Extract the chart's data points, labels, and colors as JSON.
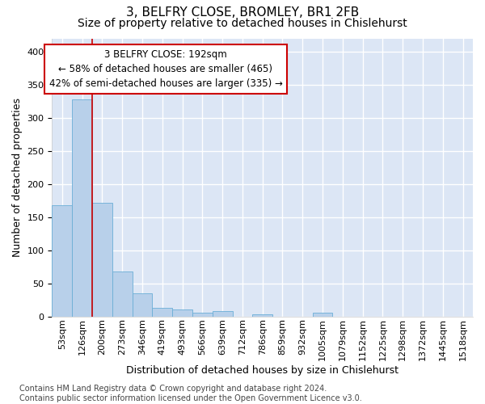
{
  "title1": "3, BELFRY CLOSE, BROMLEY, BR1 2FB",
  "title2": "Size of property relative to detached houses in Chislehurst",
  "xlabel": "Distribution of detached houses by size in Chislehurst",
  "ylabel": "Number of detached properties",
  "footnote": "Contains HM Land Registry data © Crown copyright and database right 2024.\nContains public sector information licensed under the Open Government Licence v3.0.",
  "bin_labels": [
    "53sqm",
    "126sqm",
    "200sqm",
    "273sqm",
    "346sqm",
    "419sqm",
    "493sqm",
    "566sqm",
    "639sqm",
    "712sqm",
    "786sqm",
    "859sqm",
    "932sqm",
    "1005sqm",
    "1079sqm",
    "1152sqm",
    "1225sqm",
    "1298sqm",
    "1372sqm",
    "1445sqm",
    "1518sqm"
  ],
  "bar_values": [
    168,
    328,
    172,
    68,
    35,
    13,
    10,
    5,
    8,
    0,
    3,
    0,
    0,
    5,
    0,
    0,
    0,
    0,
    0,
    0,
    0
  ],
  "bar_color": "#b8d0ea",
  "bar_edge_color": "#6baed6",
  "background_color": "#dce6f5",
  "grid_color": "#ffffff",
  "annotation_box_text": "3 BELFRY CLOSE: 192sqm\n← 58% of detached houses are smaller (465)\n42% of semi-detached houses are larger (335) →",
  "annotation_box_color": "#ffffff",
  "annotation_box_edge_color": "#cc0000",
  "redline_x": 1.5,
  "ylim": [
    0,
    420
  ],
  "yticks": [
    0,
    50,
    100,
    150,
    200,
    250,
    300,
    350,
    400
  ],
  "title1_fontsize": 11,
  "title2_fontsize": 10,
  "xlabel_fontsize": 9,
  "ylabel_fontsize": 9,
  "tick_fontsize": 8,
  "annot_fontsize": 8.5,
  "footnote_fontsize": 7
}
